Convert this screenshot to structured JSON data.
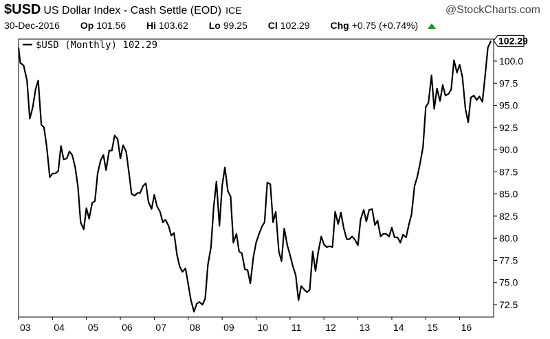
{
  "header": {
    "symbol": "$USD",
    "security_name": "US Dollar Index - Cash Settle (EOD)",
    "exchange": "ICE",
    "brand": "@StockCharts.com",
    "date": "30-Dec-2016",
    "open_label": "Op",
    "open_value": "101.56",
    "high_label": "Hi",
    "high_value": "103.62",
    "low_label": "Lo",
    "low_value": "99.25",
    "close_label": "Cl",
    "close_value": "102.29",
    "change_label": "Chg",
    "change_value": "+0.75 (+0.74%)",
    "change_direction_color": "#1a9c1a"
  },
  "chart_data": {
    "type": "line",
    "title": "$USD US Dollar Index - Cash Settle (EOD)",
    "legend": {
      "label": "$USD (Monthly) 102.29",
      "placement": "top-left"
    },
    "last_value_label": "102.29",
    "y_ticks": [
      "72.5",
      "75.0",
      "77.5",
      "80.0",
      "82.5",
      "85.0",
      "87.5",
      "90.0",
      "92.5",
      "95.0",
      "97.5",
      "100.0"
    ],
    "x_ticks": [
      "03",
      "04",
      "05",
      "06",
      "07",
      "08",
      "09",
      "10",
      "11",
      "12",
      "13",
      "14",
      "15",
      "16"
    ],
    "ylim": [
      71,
      103
    ],
    "grid": false,
    "line_color": "#000000",
    "series": [
      {
        "name": "$USD (Monthly)",
        "values": [
          [
            2003.0,
            101.5
          ],
          [
            2003.05,
            99.8
          ],
          [
            2003.15,
            99.5
          ],
          [
            2003.25,
            97.8
          ],
          [
            2003.33,
            93.5
          ],
          [
            2003.42,
            94.8
          ],
          [
            2003.5,
            96.8
          ],
          [
            2003.58,
            97.8
          ],
          [
            2003.67,
            92.8
          ],
          [
            2003.75,
            92.5
          ],
          [
            2003.83,
            90.3
          ],
          [
            2003.92,
            86.9
          ],
          [
            2004.0,
            87.3
          ],
          [
            2004.08,
            87.3
          ],
          [
            2004.17,
            87.6
          ],
          [
            2004.25,
            90.4
          ],
          [
            2004.33,
            88.9
          ],
          [
            2004.42,
            89.0
          ],
          [
            2004.5,
            89.8
          ],
          [
            2004.58,
            89.4
          ],
          [
            2004.67,
            88.0
          ],
          [
            2004.75,
            85.8
          ],
          [
            2004.83,
            81.8
          ],
          [
            2004.92,
            81.0
          ],
          [
            2005.0,
            83.4
          ],
          [
            2005.08,
            82.2
          ],
          [
            2005.17,
            84.0
          ],
          [
            2005.25,
            84.2
          ],
          [
            2005.33,
            87.3
          ],
          [
            2005.42,
            88.8
          ],
          [
            2005.5,
            89.4
          ],
          [
            2005.58,
            87.7
          ],
          [
            2005.67,
            89.9
          ],
          [
            2005.75,
            89.9
          ],
          [
            2005.83,
            91.6
          ],
          [
            2005.92,
            91.2
          ],
          [
            2006.0,
            89.0
          ],
          [
            2006.08,
            90.5
          ],
          [
            2006.17,
            89.8
          ],
          [
            2006.25,
            87.5
          ],
          [
            2006.33,
            85.0
          ],
          [
            2006.42,
            84.8
          ],
          [
            2006.5,
            85.1
          ],
          [
            2006.58,
            85.1
          ],
          [
            2006.67,
            85.9
          ],
          [
            2006.75,
            86.2
          ],
          [
            2006.83,
            84.1
          ],
          [
            2006.92,
            83.3
          ],
          [
            2007.0,
            84.9
          ],
          [
            2007.08,
            83.6
          ],
          [
            2007.17,
            83.0
          ],
          [
            2007.25,
            81.8
          ],
          [
            2007.33,
            82.1
          ],
          [
            2007.42,
            81.4
          ],
          [
            2007.5,
            80.3
          ],
          [
            2007.58,
            80.6
          ],
          [
            2007.67,
            78.1
          ],
          [
            2007.75,
            76.8
          ],
          [
            2007.83,
            76.2
          ],
          [
            2007.92,
            76.6
          ],
          [
            2008.0,
            74.8
          ],
          [
            2008.08,
            73.0
          ],
          [
            2008.17,
            71.7
          ],
          [
            2008.25,
            72.6
          ],
          [
            2008.33,
            72.8
          ],
          [
            2008.42,
            72.5
          ],
          [
            2008.5,
            73.2
          ],
          [
            2008.58,
            77.0
          ],
          [
            2008.67,
            79.0
          ],
          [
            2008.75,
            83.5
          ],
          [
            2008.83,
            86.4
          ],
          [
            2008.92,
            81.4
          ],
          [
            2009.0,
            85.9
          ],
          [
            2009.08,
            88.0
          ],
          [
            2009.17,
            85.3
          ],
          [
            2009.25,
            84.7
          ],
          [
            2009.33,
            79.5
          ],
          [
            2009.42,
            80.5
          ],
          [
            2009.5,
            78.5
          ],
          [
            2009.58,
            78.3
          ],
          [
            2009.67,
            76.5
          ],
          [
            2009.75,
            76.4
          ],
          [
            2009.83,
            74.9
          ],
          [
            2009.92,
            77.9
          ],
          [
            2010.0,
            79.5
          ],
          [
            2010.08,
            80.4
          ],
          [
            2010.17,
            81.3
          ],
          [
            2010.25,
            81.8
          ],
          [
            2010.33,
            86.3
          ],
          [
            2010.42,
            86.1
          ],
          [
            2010.5,
            81.8
          ],
          [
            2010.58,
            83.0
          ],
          [
            2010.67,
            78.5
          ],
          [
            2010.75,
            77.4
          ],
          [
            2010.83,
            81.1
          ],
          [
            2010.92,
            79.2
          ],
          [
            2011.0,
            78.1
          ],
          [
            2011.08,
            76.9
          ],
          [
            2011.17,
            75.8
          ],
          [
            2011.25,
            73.0
          ],
          [
            2011.33,
            74.6
          ],
          [
            2011.42,
            74.2
          ],
          [
            2011.5,
            73.9
          ],
          [
            2011.58,
            74.2
          ],
          [
            2011.67,
            78.5
          ],
          [
            2011.75,
            76.3
          ],
          [
            2011.83,
            78.4
          ],
          [
            2011.92,
            80.2
          ],
          [
            2012.0,
            79.3
          ],
          [
            2012.08,
            79.0
          ],
          [
            2012.17,
            79.1
          ],
          [
            2012.25,
            79.0
          ],
          [
            2012.33,
            83.0
          ],
          [
            2012.42,
            81.6
          ],
          [
            2012.5,
            82.9
          ],
          [
            2012.58,
            81.2
          ],
          [
            2012.67,
            79.9
          ],
          [
            2012.75,
            79.9
          ],
          [
            2012.83,
            80.2
          ],
          [
            2012.92,
            79.8
          ],
          [
            2013.0,
            79.2
          ],
          [
            2013.08,
            82.1
          ],
          [
            2013.17,
            83.2
          ],
          [
            2013.25,
            81.9
          ],
          [
            2013.33,
            83.2
          ],
          [
            2013.42,
            83.3
          ],
          [
            2013.5,
            81.5
          ],
          [
            2013.58,
            82.0
          ],
          [
            2013.67,
            80.2
          ],
          [
            2013.75,
            80.5
          ],
          [
            2013.83,
            80.5
          ],
          [
            2013.92,
            80.2
          ],
          [
            2014.0,
            81.2
          ],
          [
            2014.08,
            80.1
          ],
          [
            2014.17,
            80.1
          ],
          [
            2014.25,
            79.5
          ],
          [
            2014.33,
            80.4
          ],
          [
            2014.42,
            80.1
          ],
          [
            2014.5,
            81.5
          ],
          [
            2014.58,
            82.7
          ],
          [
            2014.67,
            85.9
          ],
          [
            2014.75,
            86.9
          ],
          [
            2014.83,
            88.4
          ],
          [
            2014.92,
            90.3
          ],
          [
            2015.0,
            94.8
          ],
          [
            2015.08,
            95.3
          ],
          [
            2015.17,
            98.4
          ],
          [
            2015.25,
            94.6
          ],
          [
            2015.33,
            96.9
          ],
          [
            2015.42,
            95.5
          ],
          [
            2015.5,
            97.3
          ],
          [
            2015.58,
            96.1
          ],
          [
            2015.67,
            96.3
          ],
          [
            2015.75,
            96.8
          ],
          [
            2015.83,
            100.1
          ],
          [
            2015.92,
            98.7
          ],
          [
            2016.0,
            99.6
          ],
          [
            2016.08,
            98.2
          ],
          [
            2016.17,
            94.6
          ],
          [
            2016.25,
            93.1
          ],
          [
            2016.33,
            95.9
          ],
          [
            2016.42,
            96.1
          ],
          [
            2016.5,
            95.6
          ],
          [
            2016.58,
            96.0
          ],
          [
            2016.67,
            95.4
          ],
          [
            2016.75,
            98.4
          ],
          [
            2016.83,
            101.5
          ],
          [
            2016.92,
            102.29
          ]
        ]
      }
    ]
  }
}
